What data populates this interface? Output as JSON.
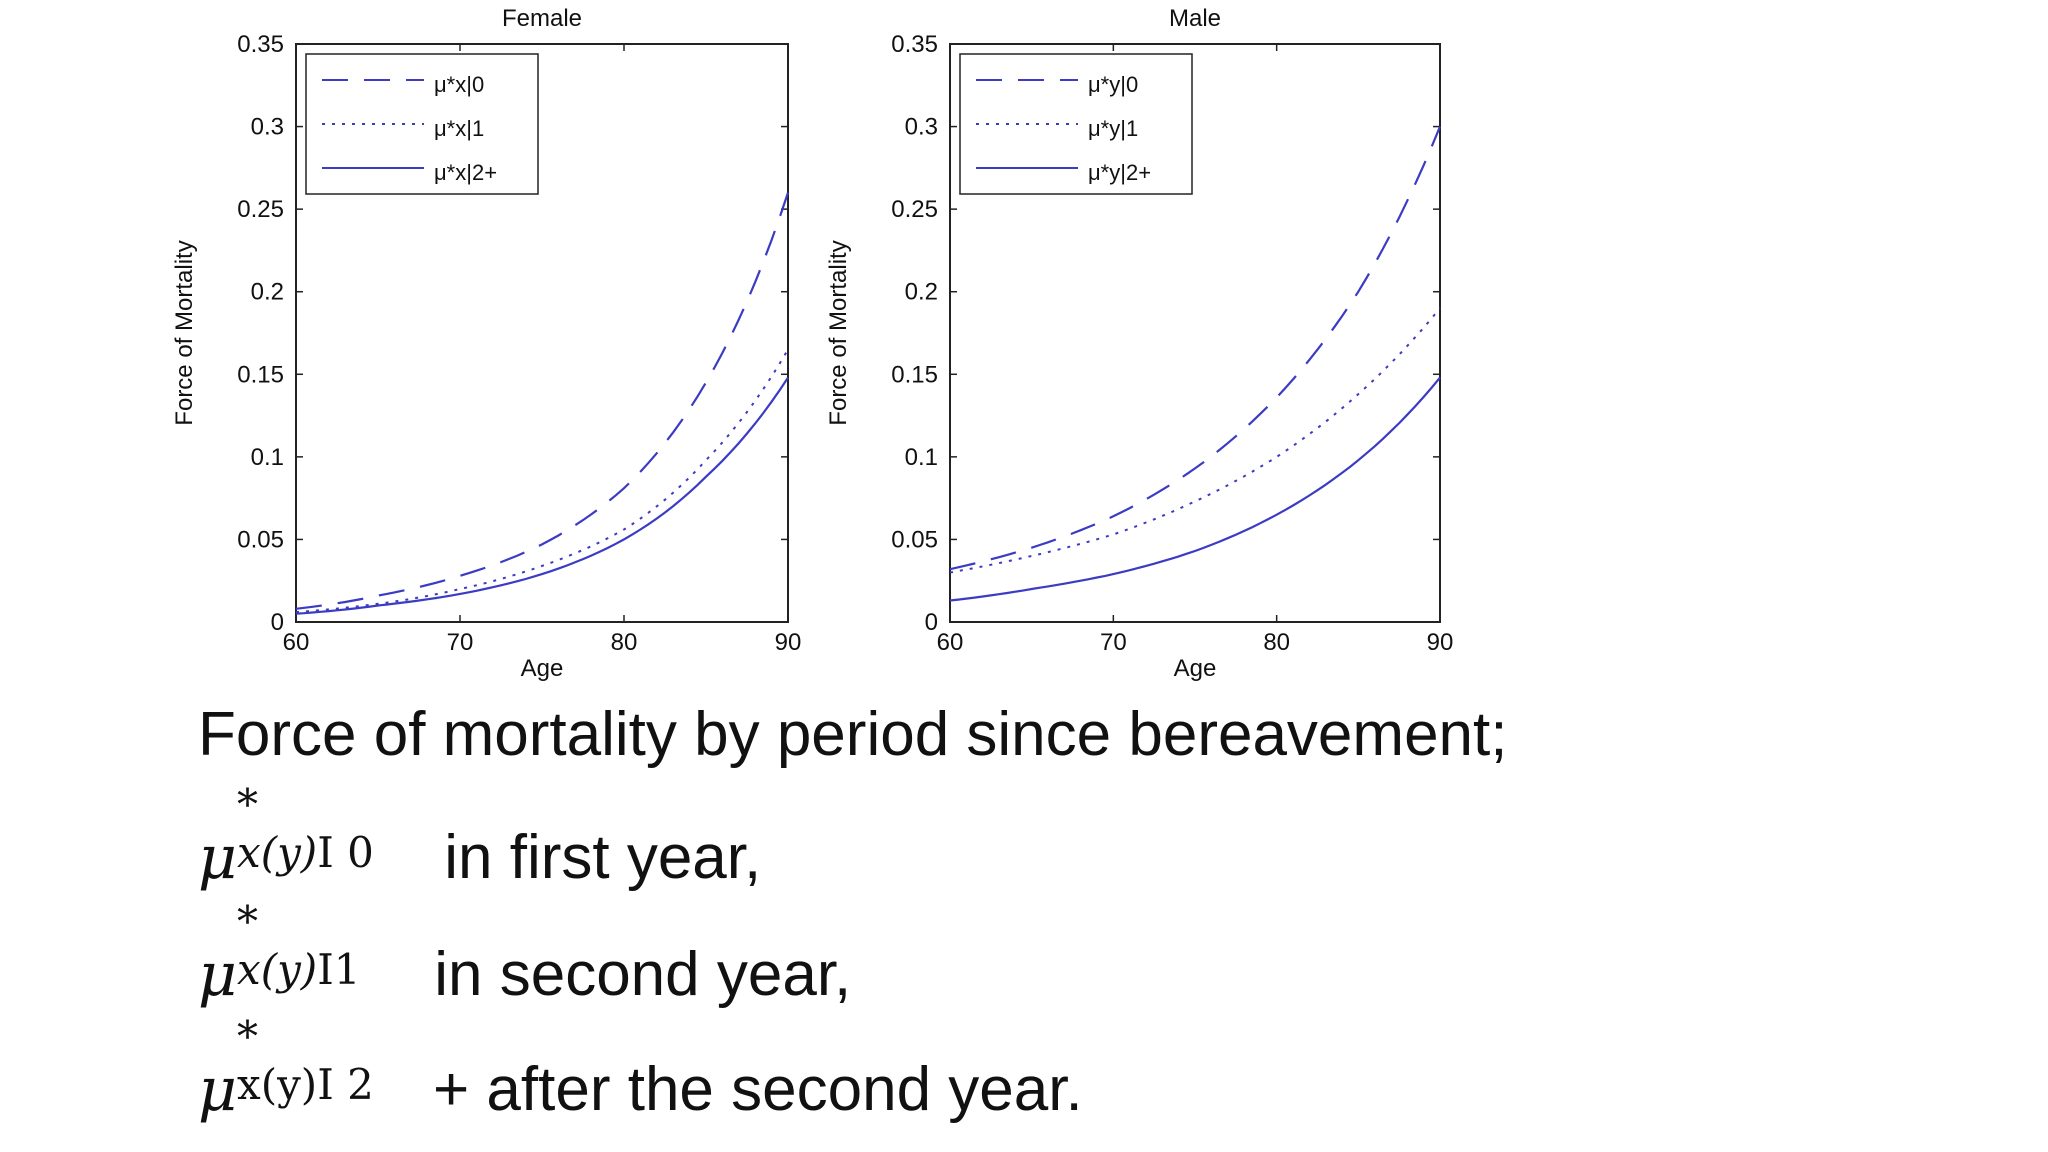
{
  "chart_data": [
    {
      "type": "line",
      "title": "Female",
      "xlabel": "Age",
      "ylabel": "Force of Mortality",
      "xlim": [
        60,
        90
      ],
      "ylim": [
        0,
        0.35
      ],
      "xticks": [
        60,
        70,
        80,
        90
      ],
      "yticks": [
        "0",
        "0.05",
        "0.1",
        "0.15",
        "0.2",
        "0.25",
        "0.3",
        "0.35"
      ],
      "grid": false,
      "legend_position": "top-left",
      "color": "#3b3bc4",
      "series": [
        {
          "name": "μ*x|0",
          "style": "dashed",
          "x": [
            60,
            65,
            70,
            75,
            80,
            85,
            90
          ],
          "y": [
            0.008,
            0.016,
            0.028,
            0.047,
            0.081,
            0.145,
            0.26
          ]
        },
        {
          "name": "μ*x|1",
          "style": "dotted",
          "x": [
            60,
            65,
            70,
            75,
            80,
            85,
            90
          ],
          "y": [
            0.006,
            0.011,
            0.02,
            0.034,
            0.056,
            0.098,
            0.165
          ]
        },
        {
          "name": "μ*x|2+",
          "style": "solid",
          "x": [
            60,
            65,
            70,
            75,
            80,
            85,
            90
          ],
          "y": [
            0.005,
            0.01,
            0.017,
            0.029,
            0.05,
            0.088,
            0.148
          ]
        }
      ]
    },
    {
      "type": "line",
      "title": "Male",
      "xlabel": "Age",
      "ylabel": "Force of Mortality",
      "xlim": [
        60,
        90
      ],
      "ylim": [
        0,
        0.35
      ],
      "xticks": [
        60,
        70,
        80,
        90
      ],
      "yticks": [
        "0",
        "0.05",
        "0.1",
        "0.15",
        "0.2",
        "0.25",
        "0.3",
        "0.35"
      ],
      "grid": false,
      "legend_position": "top-left",
      "color": "#3b3bc4",
      "series": [
        {
          "name": "μ*y|0",
          "style": "dashed",
          "x": [
            60,
            65,
            70,
            75,
            80,
            85,
            90
          ],
          "y": [
            0.032,
            0.045,
            0.064,
            0.093,
            0.136,
            0.2,
            0.3
          ]
        },
        {
          "name": "μ*y|1",
          "style": "dotted",
          "x": [
            60,
            65,
            70,
            75,
            80,
            85,
            90
          ],
          "y": [
            0.03,
            0.04,
            0.053,
            0.073,
            0.1,
            0.138,
            0.19
          ]
        },
        {
          "name": "μ*y|2+",
          "style": "solid",
          "x": [
            60,
            65,
            70,
            75,
            80,
            85,
            90
          ],
          "y": [
            0.013,
            0.02,
            0.029,
            0.043,
            0.065,
            0.098,
            0.148
          ]
        }
      ]
    }
  ],
  "captions": {
    "line1": "Force of mortality by period since bereavement;",
    "mu": "μ",
    "star": "*",
    "sub0": {
      "x": "x",
      "y": "(y)",
      "tail": "I 0"
    },
    "sub1": {
      "x": "x",
      "y": "(y)",
      "tail": "I1"
    },
    "sub2": {
      "x": "x",
      "y": "(y)",
      "tail": "I 2"
    },
    "line2": "in first year,",
    "line3": "in second year,",
    "line4": "+ after the second year."
  }
}
